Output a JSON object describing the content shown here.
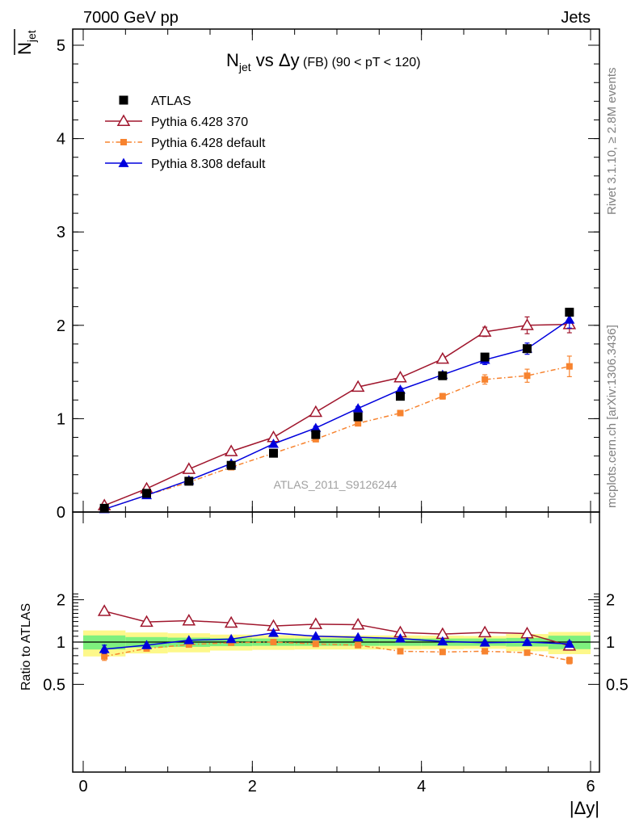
{
  "header": {
    "left": "7000 GeV pp",
    "right": "Jets"
  },
  "side_labels": {
    "rivet": "Rivet 3.1.10, ≥ 2.8M events",
    "mcplots": "mcplots.cern.ch [arXiv:1306.3436]"
  },
  "watermark": "ATLAS_2011_S9126244",
  "chart_data": [
    {
      "type": "scatter",
      "title_parts": {
        "n": "N",
        "sub": "jet",
        "rest": " vs Δy",
        "small": " (FB)",
        "range": " (90 < pT < 120)"
      },
      "ylabel_parts": {
        "n": "N",
        "sub": "jet"
      },
      "xlim": [
        0,
        6
      ],
      "ylim": [
        0,
        5
      ],
      "y_ticks": [
        0,
        1,
        2,
        3,
        4,
        5
      ],
      "y_tick_labels": [
        "0",
        "1",
        "2",
        "3",
        "4",
        "5"
      ],
      "x": [
        0.25,
        0.75,
        1.25,
        1.75,
        2.25,
        2.75,
        3.25,
        3.75,
        4.25,
        4.75,
        5.25,
        5.75
      ],
      "legend_position": "top-left",
      "series": [
        {
          "name": "ATLAS",
          "marker": "square",
          "color": "#000000",
          "line": "none",
          "values": [
            0.04,
            0.2,
            0.33,
            0.5,
            0.63,
            0.83,
            1.02,
            1.24,
            1.46,
            1.66,
            1.75,
            2.14
          ],
          "errors": [
            0.01,
            0.01,
            0.01,
            0.01,
            0.01,
            0.02,
            0.02,
            0.02,
            0.02,
            0.03,
            0.04,
            0.04
          ]
        },
        {
          "name": "Pythia 6.428 370",
          "marker": "open-triangle",
          "color": "#a0162d",
          "line": "solid",
          "values": [
            0.07,
            0.25,
            0.46,
            0.65,
            0.8,
            1.07,
            1.34,
            1.44,
            1.64,
            1.93,
            2.0,
            2.01
          ],
          "errors": [
            0.01,
            0.01,
            0.01,
            0.01,
            0.01,
            0.02,
            0.02,
            0.02,
            0.03,
            0.05,
            0.09,
            0.09
          ]
        },
        {
          "name": "Pythia 6.428 default",
          "marker": "filled-square-small",
          "color": "#f7832f",
          "line": "dashdot",
          "values": [
            0.03,
            0.18,
            0.32,
            0.48,
            0.63,
            0.78,
            0.95,
            1.06,
            1.24,
            1.42,
            1.46,
            1.56
          ],
          "errors": [
            0.01,
            0.01,
            0.01,
            0.01,
            0.01,
            0.02,
            0.02,
            0.02,
            0.03,
            0.05,
            0.07,
            0.11
          ]
        },
        {
          "name": "Pythia 8.308 default",
          "marker": "filled-triangle",
          "color": "#0000dd",
          "line": "solid",
          "values": [
            0.03,
            0.18,
            0.34,
            0.52,
            0.73,
            0.9,
            1.11,
            1.31,
            1.47,
            1.63,
            1.75,
            2.06
          ],
          "errors": [
            0.01,
            0.01,
            0.01,
            0.01,
            0.01,
            0.02,
            0.02,
            0.02,
            0.03,
            0.05,
            0.06,
            0.09
          ]
        }
      ]
    },
    {
      "type": "scatter",
      "ylabel": "Ratio to ATLAS",
      "xlabel": "|Δy|",
      "xlim": [
        0,
        6
      ],
      "ylim": [
        0.4,
        2.2
      ],
      "y_ticks": [
        0.5,
        1,
        2
      ],
      "y_tick_labels": [
        "0.5",
        "1",
        "2"
      ],
      "x_ticks": [
        0,
        2,
        4,
        6
      ],
      "x_tick_labels": [
        "0",
        "2",
        "4",
        "6"
      ],
      "x": [
        0.25,
        0.75,
        1.25,
        1.75,
        2.25,
        2.75,
        3.25,
        3.75,
        4.25,
        4.75,
        5.25,
        5.75
      ],
      "bin_edges": [
        0,
        0.5,
        1.0,
        1.5,
        2.0,
        2.5,
        3.0,
        3.5,
        4.0,
        4.5,
        5.0,
        5.5,
        6.0
      ],
      "uncertainty_band_inner": [
        0.115,
        0.085,
        0.075,
        0.065,
        0.06,
        0.06,
        0.06,
        0.06,
        0.06,
        0.06,
        0.07,
        0.11
      ],
      "uncertainty_band_outer": [
        0.21,
        0.17,
        0.155,
        0.13,
        0.12,
        0.115,
        0.115,
        0.115,
        0.11,
        0.105,
        0.14,
        0.18
      ],
      "band_colors": {
        "inner": "#7ef07e",
        "outer": "#fdf88a"
      },
      "series": [
        {
          "name": "Pythia 6.428 370",
          "marker": "open-triangle",
          "color": "#a0162d",
          "line": "solid",
          "values": [
            1.66,
            1.39,
            1.42,
            1.37,
            1.3,
            1.34,
            1.33,
            1.17,
            1.14,
            1.17,
            1.15,
            0.94
          ],
          "errors": [
            0.06,
            0.02,
            0.02,
            0.02,
            0.02,
            0.02,
            0.02,
            0.02,
            0.02,
            0.03,
            0.04,
            0.05
          ]
        },
        {
          "name": "Pythia 6.428 default",
          "marker": "filled-square-small",
          "color": "#f7832f",
          "line": "dashdot",
          "values": [
            0.79,
            0.9,
            0.96,
            0.99,
            1.0,
            0.97,
            0.95,
            0.86,
            0.85,
            0.86,
            0.84,
            0.74
          ],
          "errors": [
            0.05,
            0.02,
            0.01,
            0.01,
            0.01,
            0.01,
            0.01,
            0.01,
            0.01,
            0.02,
            0.03,
            0.04
          ]
        },
        {
          "name": "Pythia 8.308 default",
          "marker": "filled-triangle",
          "color": "#0000dd",
          "line": "solid",
          "values": [
            0.89,
            0.95,
            1.03,
            1.05,
            1.16,
            1.1,
            1.08,
            1.06,
            1.01,
            0.99,
            1.0,
            0.97
          ],
          "errors": [
            0.06,
            0.02,
            0.01,
            0.01,
            0.01,
            0.01,
            0.01,
            0.01,
            0.01,
            0.02,
            0.03,
            0.04
          ]
        }
      ]
    }
  ]
}
